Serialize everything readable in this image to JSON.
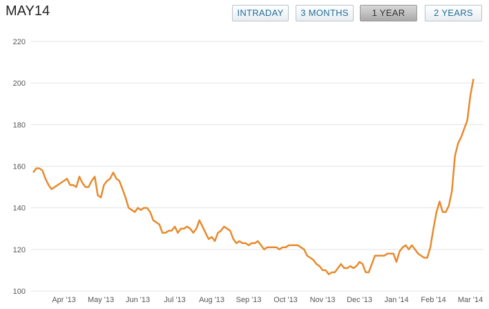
{
  "header": {
    "title": "MAY14",
    "buttons": [
      "INTRADAY",
      "3 MONTHS",
      "1 YEAR",
      "2 YEARS"
    ],
    "selected_button": 2
  },
  "chart_data": {
    "type": "line",
    "color": "#e8892b",
    "grid": true,
    "ylim": [
      100,
      220
    ],
    "yticks": [
      100,
      120,
      140,
      160,
      180,
      200,
      220
    ],
    "categories": [
      null,
      null,
      null,
      null,
      null,
      null,
      null,
      null,
      null,
      null,
      "Apr '13",
      null,
      null,
      null,
      null,
      null,
      null,
      null,
      null,
      null,
      null,
      null,
      "May '13",
      null,
      null,
      null,
      null,
      null,
      null,
      null,
      null,
      null,
      null,
      null,
      "Jun '13",
      null,
      null,
      null,
      null,
      null,
      null,
      null,
      null,
      null,
      null,
      null,
      "Jul '13",
      null,
      null,
      null,
      null,
      null,
      null,
      null,
      null,
      null,
      null,
      null,
      "Aug '13",
      null,
      null,
      null,
      null,
      null,
      null,
      null,
      null,
      null,
      null,
      null,
      "Sep '13",
      null,
      null,
      null,
      null,
      null,
      null,
      null,
      null,
      null,
      null,
      null,
      "Oct '13",
      null,
      null,
      null,
      null,
      null,
      null,
      null,
      null,
      null,
      null,
      null,
      "Nov '13",
      null,
      null,
      null,
      null,
      null,
      null,
      null,
      null,
      null,
      null,
      null,
      "Dec '13",
      null,
      null,
      null,
      null,
      null,
      null,
      null,
      null,
      null,
      null,
      null,
      "Jan '14",
      null,
      null,
      null,
      null,
      null,
      null,
      null,
      null,
      null,
      null,
      null,
      "Feb '14",
      null,
      null,
      null,
      null,
      null,
      null,
      null,
      null,
      null,
      null,
      null,
      "Mar '14",
      null
    ],
    "values": [
      157,
      159,
      159,
      158,
      154,
      151,
      149,
      150,
      151,
      152,
      153,
      154,
      151,
      151,
      150,
      155,
      152,
      150,
      150,
      153,
      155,
      146,
      145,
      151,
      153,
      154,
      157,
      154,
      153,
      149,
      145,
      140,
      139,
      138,
      140,
      139,
      140,
      140,
      138,
      134,
      133,
      132,
      128,
      128,
      129,
      129,
      131,
      128,
      130,
      130,
      131,
      130,
      128,
      130,
      134,
      131,
      128,
      125,
      126,
      124,
      128,
      129,
      131,
      130,
      129,
      125,
      123,
      124,
      123,
      123,
      122,
      123,
      123,
      124,
      122,
      120,
      121,
      121,
      121,
      121,
      120,
      121,
      121,
      122,
      122,
      122,
      122,
      121,
      120,
      117,
      116,
      115,
      113,
      112,
      110,
      110,
      108,
      109,
      109,
      111,
      113,
      111,
      111,
      112,
      111,
      112,
      114,
      113,
      109,
      109,
      113,
      117,
      117,
      117,
      117,
      118,
      118,
      118,
      114,
      119,
      121,
      122,
      120,
      122,
      120,
      118,
      117,
      116,
      116,
      121,
      130,
      138,
      143,
      138,
      138,
      141,
      148,
      165,
      171,
      174,
      178,
      182,
      194,
      202
    ]
  }
}
